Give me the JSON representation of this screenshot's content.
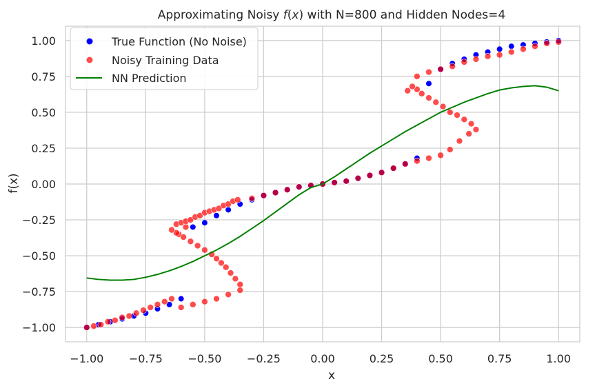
{
  "chart_data": {
    "type": "scatter",
    "title": "Approximating Noisy f(x) with N=800 and Hidden Nodes=4",
    "title_parts": {
      "prefix": "Approximating Noisy ",
      "func": "f",
      "open": "(",
      "var": "x",
      "close": ")",
      "suffix": " with N=800 and Hidden Nodes=4"
    },
    "xlabel": "x",
    "ylabel": "f(x)",
    "xlim": [
      -1.09,
      1.09
    ],
    "ylim": [
      -1.1,
      1.1
    ],
    "xticks": [
      -1.0,
      -0.75,
      -0.5,
      -0.25,
      0.0,
      0.25,
      0.5,
      0.75,
      1.0
    ],
    "xtick_labels": [
      "−1.00",
      "−0.75",
      "−0.50",
      "−0.25",
      "0.00",
      "0.25",
      "0.50",
      "0.75",
      "1.00"
    ],
    "yticks": [
      1.0,
      0.75,
      0.5,
      0.25,
      0.0,
      -0.25,
      -0.5,
      -0.75,
      -1.0
    ],
    "ytick_labels": [
      "1.00",
      "0.75",
      "0.50",
      "0.25",
      "0.00",
      "−0.25",
      "−0.50",
      "−0.75",
      "−1.00"
    ],
    "grid": true,
    "legend_position": "top-left",
    "series": [
      {
        "name": "True Function (No Noise)",
        "kind": "scatter",
        "color": "#0000ff",
        "x": [
          -1.0,
          -0.95,
          -0.9,
          -0.85,
          -0.8,
          -0.75,
          -0.7,
          -0.65,
          -0.6,
          -0.55,
          -0.5,
          -0.45,
          -0.4,
          -0.35,
          -0.3,
          -0.25,
          -0.2,
          -0.15,
          -0.1,
          -0.05,
          0.0,
          0.05,
          0.1,
          0.15,
          0.2,
          0.25,
          0.3,
          0.35,
          0.4,
          0.45,
          0.5,
          0.55,
          0.6,
          0.65,
          0.7,
          0.75,
          0.8,
          0.85,
          0.9,
          0.95,
          1.0
        ],
        "y": [
          -1.0,
          -0.98,
          -0.96,
          -0.94,
          -0.92,
          -0.9,
          -0.87,
          -0.84,
          -0.8,
          -0.3,
          -0.27,
          -0.22,
          -0.18,
          -0.14,
          -0.11,
          -0.08,
          -0.06,
          -0.04,
          -0.02,
          -0.01,
          0.0,
          0.01,
          0.02,
          0.04,
          0.06,
          0.08,
          0.11,
          0.14,
          0.18,
          0.7,
          0.8,
          0.84,
          0.87,
          0.9,
          0.92,
          0.94,
          0.96,
          0.97,
          0.98,
          0.99,
          1.0
        ]
      },
      {
        "name": "Noisy Training Data",
        "kind": "scatter",
        "color": "#ff0000",
        "x": [
          -1.0,
          -0.97,
          -0.94,
          -0.91,
          -0.88,
          -0.85,
          -0.82,
          -0.79,
          -0.76,
          -0.73,
          -0.7,
          -0.67,
          -0.64,
          -0.61,
          -0.58,
          -0.62,
          -0.6,
          -0.58,
          -0.56,
          -0.54,
          -0.52,
          -0.5,
          -0.48,
          -0.46,
          -0.44,
          -0.42,
          -0.4,
          -0.38,
          -0.36,
          -0.35,
          -0.37,
          -0.39,
          -0.41,
          -0.43,
          -0.45,
          -0.47,
          -0.5,
          -0.53,
          -0.56,
          -0.59,
          -0.62,
          -0.64,
          -0.6,
          -0.55,
          -0.5,
          -0.45,
          -0.4,
          -0.35,
          -0.3,
          -0.25,
          -0.2,
          -0.15,
          -0.1,
          -0.05,
          0.0,
          0.05,
          0.1,
          0.15,
          0.2,
          0.25,
          0.3,
          0.35,
          0.4,
          0.45,
          0.5,
          0.54,
          0.58,
          0.62,
          0.65,
          0.63,
          0.6,
          0.57,
          0.54,
          0.51,
          0.48,
          0.45,
          0.42,
          0.4,
          0.38,
          0.36,
          0.4,
          0.45,
          0.5,
          0.55,
          0.6,
          0.65,
          0.7,
          0.75,
          0.8,
          0.85,
          0.9,
          0.95,
          1.0
        ],
        "y": [
          -1.0,
          -0.99,
          -0.98,
          -0.96,
          -0.95,
          -0.93,
          -0.92,
          -0.9,
          -0.88,
          -0.86,
          -0.84,
          -0.82,
          -0.8,
          -0.35,
          -0.3,
          -0.28,
          -0.27,
          -0.26,
          -0.25,
          -0.23,
          -0.22,
          -0.2,
          -0.19,
          -0.18,
          -0.17,
          -0.15,
          -0.14,
          -0.12,
          -0.11,
          -0.7,
          -0.66,
          -0.62,
          -0.58,
          -0.55,
          -0.52,
          -0.49,
          -0.46,
          -0.43,
          -0.4,
          -0.37,
          -0.34,
          -0.32,
          -0.86,
          -0.84,
          -0.82,
          -0.8,
          -0.77,
          -0.74,
          -0.1,
          -0.08,
          -0.06,
          -0.04,
          -0.02,
          -0.01,
          0.0,
          0.01,
          0.02,
          0.04,
          0.06,
          0.08,
          0.11,
          0.14,
          0.16,
          0.18,
          0.2,
          0.24,
          0.3,
          0.35,
          0.38,
          0.42,
          0.45,
          0.48,
          0.5,
          0.54,
          0.57,
          0.6,
          0.63,
          0.66,
          0.68,
          0.65,
          0.75,
          0.78,
          0.8,
          0.82,
          0.85,
          0.87,
          0.89,
          0.9,
          0.92,
          0.94,
          0.96,
          0.98,
          0.99
        ]
      },
      {
        "name": "NN Prediction",
        "kind": "line",
        "color": "#008000",
        "x": [
          -1.0,
          -0.95,
          -0.9,
          -0.85,
          -0.8,
          -0.75,
          -0.7,
          -0.65,
          -0.6,
          -0.55,
          -0.5,
          -0.45,
          -0.4,
          -0.35,
          -0.3,
          -0.25,
          -0.2,
          -0.15,
          -0.1,
          -0.05,
          0.0,
          0.05,
          0.1,
          0.15,
          0.2,
          0.25,
          0.3,
          0.35,
          0.4,
          0.45,
          0.5,
          0.55,
          0.6,
          0.65,
          0.7,
          0.75,
          0.8,
          0.85,
          0.9,
          0.95,
          1.0
        ],
        "y": [
          -0.655,
          -0.665,
          -0.67,
          -0.67,
          -0.665,
          -0.65,
          -0.63,
          -0.605,
          -0.575,
          -0.54,
          -0.5,
          -0.46,
          -0.415,
          -0.365,
          -0.31,
          -0.255,
          -0.195,
          -0.135,
          -0.075,
          -0.025,
          0.0,
          0.05,
          0.105,
          0.16,
          0.215,
          0.265,
          0.315,
          0.365,
          0.41,
          0.455,
          0.5,
          0.535,
          0.57,
          0.6,
          0.63,
          0.655,
          0.67,
          0.68,
          0.685,
          0.675,
          0.65
        ]
      }
    ]
  }
}
